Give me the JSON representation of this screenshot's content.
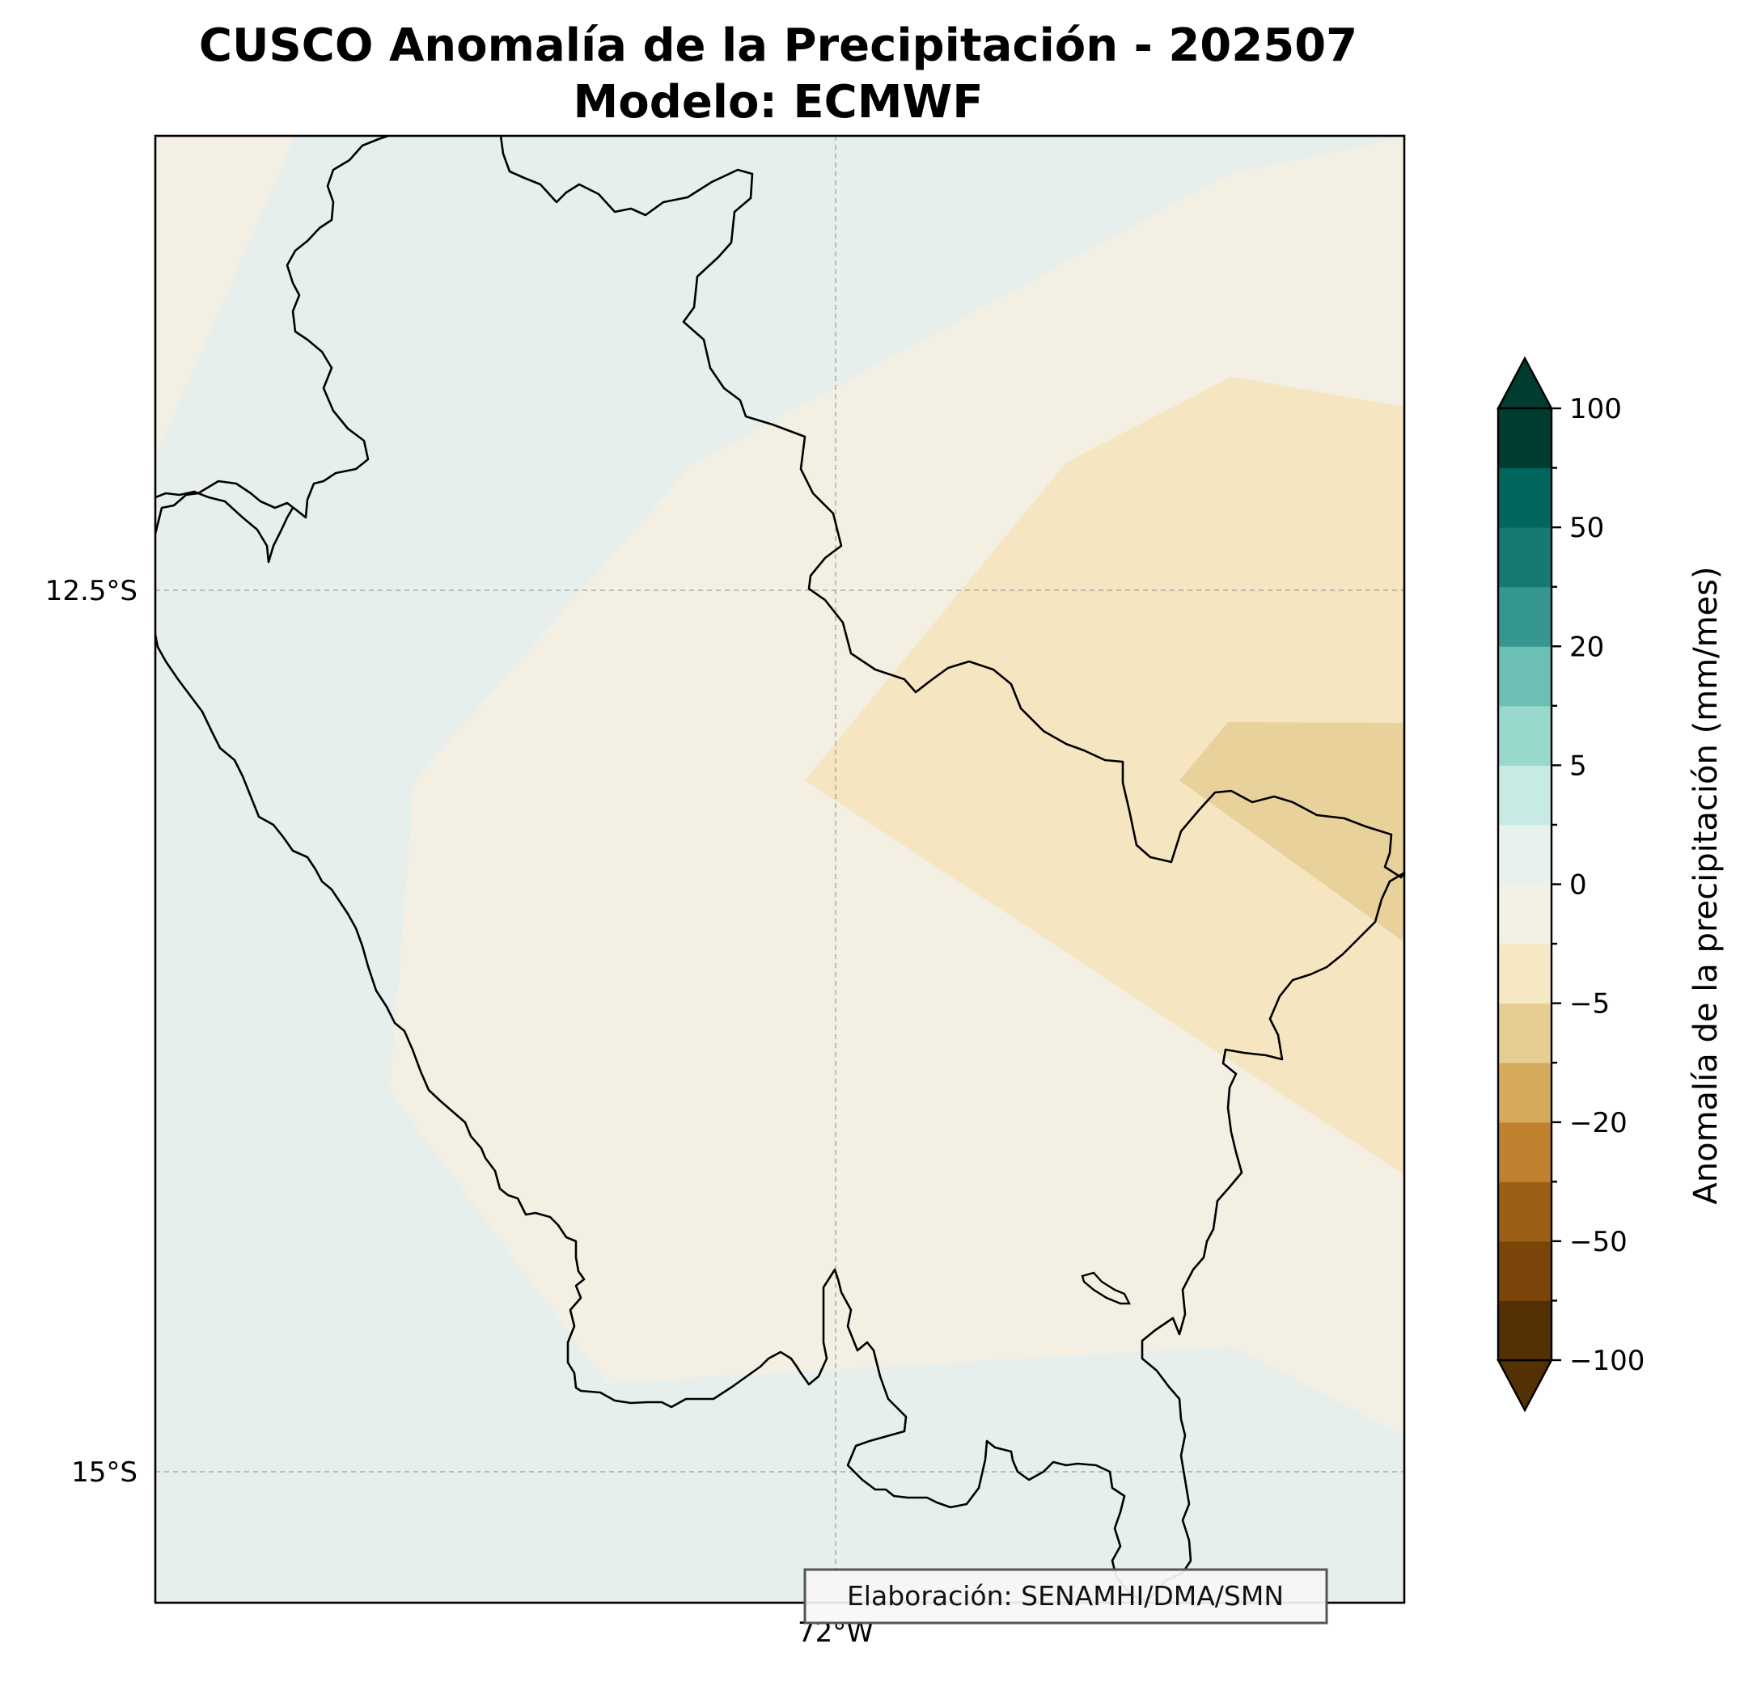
{
  "title": {
    "line1": "CUSCO Anomalía de la Precipitación - 202507",
    "line2": "Modelo: ECMWF"
  },
  "axes": {
    "lat_ticks": [
      "12.5°S",
      "15°S"
    ],
    "lon_ticks": [
      "72°W"
    ]
  },
  "colorbar": {
    "label": "Anomalía de la precipitación (mm/mes)",
    "tick_labels": [
      "100",
      "50",
      "20",
      "5",
      "0",
      "−5",
      "−20",
      "−50",
      "−100"
    ],
    "colors": [
      "#543005",
      "#7a4509",
      "#9c5f16",
      "#bf812d",
      "#d4aa5c",
      "#e6cd94",
      "#f6e8c3",
      "#f5f0e6",
      "#e9f1ef",
      "#c7eae5",
      "#99d8cc",
      "#6cc0b3",
      "#35978f",
      "#167a72",
      "#01665e",
      "#003c30"
    ]
  },
  "legend_colors": {
    "light_teal": "#e6efec",
    "cream": "#f4efe3",
    "tan": "#f5e5c0",
    "dark_tan": "#e8d19b"
  },
  "credit": "Elaboración: SENAMHI/DMA/SMN"
}
